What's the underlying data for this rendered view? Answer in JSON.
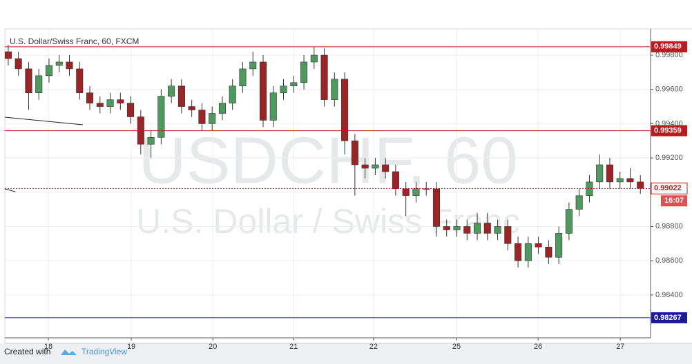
{
  "chart_data": {
    "type": "candlestick",
    "title": "U.S. Dollar/Swiss Franc, 60, FXCM",
    "watermark": "USDCHF, 60",
    "watermark_subtitle": "U.S. Dollar / Swiss Franc",
    "x": [
      0,
      3,
      6,
      9,
      12,
      15,
      18,
      21,
      24,
      27,
      30,
      33,
      36,
      39,
      42,
      45,
      48,
      51,
      54,
      57,
      60,
      63,
      66,
      69,
      72,
      75,
      78,
      81,
      84,
      87,
      90,
      93,
      96,
      99,
      102,
      105,
      108,
      111,
      114,
      117,
      120,
      123,
      126,
      129,
      132,
      135,
      138,
      141,
      144,
      147,
      150,
      153,
      156,
      159,
      162,
      165,
      168,
      171,
      174,
      177,
      180,
      183,
      186
    ],
    "open": [
      0.9982,
      0.9978,
      0.9972,
      0.9958,
      0.9968,
      0.9974,
      0.9976,
      0.9972,
      0.9958,
      0.9952,
      0.995,
      0.9954,
      0.9952,
      0.9944,
      0.9928,
      0.9932,
      0.9956,
      0.9962,
      0.995,
      0.9948,
      0.994,
      0.9946,
      0.9952,
      0.9962,
      0.9972,
      0.9976,
      0.9942,
      0.9958,
      0.9962,
      0.9964,
      0.9976,
      0.998,
      0.9954,
      0.9966,
      0.993,
      0.9916,
      0.9914,
      0.9916,
      0.9912,
      0.9902,
      0.9898,
      0.9902,
      0.9902,
      0.988,
      0.9878,
      0.988,
      0.9876,
      0.9882,
      0.9876,
      0.988,
      0.987,
      0.986,
      0.987,
      0.9868,
      0.9862,
      0.9876,
      0.989,
      0.9898,
      0.9906,
      0.9916,
      0.9906,
      0.9908,
      0.9906
    ],
    "high": [
      0.9986,
      0.9982,
      0.9976,
      0.9972,
      0.9978,
      0.998,
      0.998,
      0.9976,
      0.9962,
      0.9956,
      0.9958,
      0.9958,
      0.9956,
      0.9948,
      0.9936,
      0.996,
      0.9966,
      0.9966,
      0.9954,
      0.9952,
      0.995,
      0.9956,
      0.9966,
      0.9976,
      0.9982,
      0.998,
      0.9962,
      0.9966,
      0.9968,
      0.998,
      0.9985,
      0.9984,
      0.997,
      0.997,
      0.9934,
      0.992,
      0.992,
      0.992,
      0.9916,
      0.9906,
      0.9906,
      0.9906,
      0.9906,
      0.9884,
      0.9884,
      0.9884,
      0.9888,
      0.9888,
      0.9884,
      0.9884,
      0.9874,
      0.9874,
      0.9874,
      0.9872,
      0.988,
      0.9894,
      0.9902,
      0.991,
      0.9922,
      0.992,
      0.9912,
      0.9914,
      0.991
    ],
    "low": [
      0.9974,
      0.9968,
      0.9948,
      0.9954,
      0.9964,
      0.997,
      0.9968,
      0.9954,
      0.9948,
      0.9946,
      0.9946,
      0.9948,
      0.994,
      0.9922,
      0.992,
      0.9928,
      0.9952,
      0.9946,
      0.9944,
      0.9936,
      0.9936,
      0.9942,
      0.9948,
      0.9958,
      0.9968,
      0.9938,
      0.9938,
      0.9954,
      0.9958,
      0.996,
      0.9972,
      0.995,
      0.995,
      0.9922,
      0.9898,
      0.9908,
      0.991,
      0.9908,
      0.9898,
      0.9886,
      0.9894,
      0.9898,
      0.9874,
      0.9874,
      0.9874,
      0.9872,
      0.9872,
      0.9872,
      0.9872,
      0.9866,
      0.9856,
      0.9856,
      0.9864,
      0.9858,
      0.9858,
      0.9872,
      0.9886,
      0.9894,
      0.9902,
      0.9902,
      0.9902,
      0.9902,
      0.9899
    ],
    "close": [
      0.9978,
      0.9972,
      0.9958,
      0.9968,
      0.9974,
      0.9976,
      0.9972,
      0.9958,
      0.9952,
      0.995,
      0.9954,
      0.9952,
      0.9944,
      0.9928,
      0.9932,
      0.9956,
      0.9962,
      0.995,
      0.9948,
      0.994,
      0.9946,
      0.9952,
      0.9962,
      0.9972,
      0.9976,
      0.9942,
      0.9958,
      0.9962,
      0.9964,
      0.9976,
      0.998,
      0.9954,
      0.9966,
      0.993,
      0.9916,
      0.9914,
      0.9916,
      0.9912,
      0.9902,
      0.9898,
      0.9902,
      0.9902,
      0.988,
      0.9878,
      0.988,
      0.9876,
      0.9882,
      0.9876,
      0.988,
      0.987,
      0.986,
      0.987,
      0.9868,
      0.9862,
      0.9876,
      0.989,
      0.9898,
      0.9906,
      0.9916,
      0.9906,
      0.9908,
      0.9906,
      0.99022
    ],
    "up_color": "#4e9a5e",
    "down_color": "#9c2424",
    "xlim": [
      -1,
      189
    ],
    "ylim": [
      0.9815,
      0.99953
    ],
    "xticks": [
      {
        "value": 11.8,
        "label": "18"
      },
      {
        "value": 36.2,
        "label": "19"
      },
      {
        "value": 60.2,
        "label": "20"
      },
      {
        "value": 84,
        "label": "21"
      },
      {
        "value": 107.5,
        "label": "22"
      },
      {
        "value": 131.9,
        "label": "25"
      },
      {
        "value": 155.9,
        "label": "26"
      },
      {
        "value": 180.1,
        "label": "27"
      }
    ],
    "yticks": [
      {
        "value": 0.984,
        "label": "0.98400"
      },
      {
        "value": 0.986,
        "label": "0.98600"
      },
      {
        "value": 0.988,
        "label": "0.98800"
      },
      {
        "value": 0.99,
        "label": "0.99000"
      },
      {
        "value": 0.992,
        "label": "0.99200"
      },
      {
        "value": 0.994,
        "label": "0.99400"
      },
      {
        "value": 0.996,
        "label": "0.99600"
      },
      {
        "value": 0.998,
        "label": "0.99800"
      }
    ],
    "grid": true,
    "levels": [
      {
        "value": 0.99849,
        "color": "#c0181c"
      },
      {
        "value": 0.99359,
        "color": "#c0181c"
      },
      {
        "value": 0.98267,
        "color": "#1a1a9a"
      }
    ],
    "last_price": 0.99022,
    "countdown": "16:07"
  },
  "footer": {
    "created_with": "Created with",
    "brand": "TradingView"
  }
}
